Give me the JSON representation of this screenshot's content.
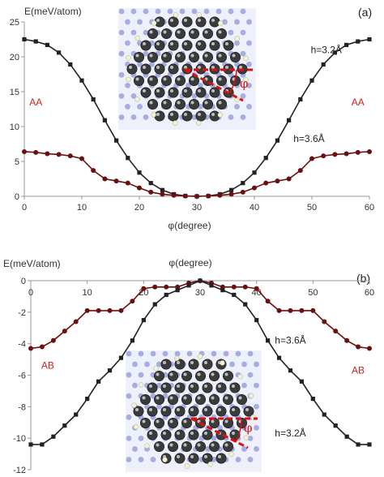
{
  "chart_data": [
    {
      "type": "line",
      "panel_label": "(a)",
      "ylabel": "E(meV/atom)",
      "xlabel": "φ(degree)",
      "xlim": [
        0,
        60
      ],
      "ylim": [
        0,
        25
      ],
      "x_ticks": [
        0,
        10,
        20,
        30,
        40,
        50,
        60
      ],
      "y_ticks": [
        0,
        5,
        10,
        15,
        20,
        25
      ],
      "grid": false,
      "series": [
        {
          "name": "h=3.2Å",
          "color": "#222222",
          "marker": "square",
          "x": [
            0,
            2,
            4,
            6,
            8,
            10,
            12,
            14,
            16,
            18,
            20,
            22,
            24,
            26,
            28,
            30,
            32,
            34,
            36,
            38,
            40,
            42,
            44,
            46,
            48,
            50,
            52,
            54,
            56,
            58,
            60
          ],
          "y": [
            22.5,
            22.2,
            21.7,
            20.6,
            18.9,
            16.6,
            13.9,
            10.9,
            8.0,
            5.5,
            3.4,
            1.9,
            0.9,
            0.3,
            0.05,
            0.0,
            0.05,
            0.3,
            0.9,
            1.9,
            3.4,
            5.5,
            8.0,
            10.9,
            13.9,
            16.6,
            18.9,
            20.6,
            21.7,
            22.2,
            22.5
          ]
        },
        {
          "name": "h=3.6Å",
          "color": "#6b0f0f",
          "marker": "circle",
          "x": [
            0,
            2,
            4,
            6,
            8,
            10,
            12,
            14,
            16,
            18,
            20,
            22,
            24,
            26,
            28,
            30,
            32,
            34,
            36,
            38,
            40,
            42,
            44,
            46,
            48,
            50,
            52,
            54,
            56,
            58,
            60
          ],
          "y": [
            6.4,
            6.3,
            6.1,
            6.0,
            5.8,
            5.4,
            3.7,
            2.5,
            2.2,
            1.9,
            1.2,
            0.6,
            0.3,
            0.15,
            0.05,
            0.0,
            0.05,
            0.15,
            0.3,
            0.6,
            1.2,
            1.9,
            2.2,
            2.5,
            3.7,
            5.4,
            5.8,
            6.0,
            6.1,
            6.3,
            6.4
          ]
        }
      ],
      "annotations": [
        {
          "text": "AA",
          "x": 2,
          "y": 13,
          "color": "#cc2222"
        },
        {
          "text": "AA",
          "x": 58,
          "y": 13,
          "color": "#cc2222"
        },
        {
          "text": "h=3.2Å",
          "x": 52.5,
          "y": 20.5,
          "color": "#222222"
        },
        {
          "text": "h=3.6Å",
          "x": 49.5,
          "y": 7.8,
          "color": "#222222"
        },
        {
          "text": "φ",
          "x": 38.2,
          "y": 15.6,
          "color": "#dd1111"
        }
      ]
    },
    {
      "type": "line",
      "panel_label": "(b)",
      "ylabel": "E(meV/atom)",
      "xlabel": "φ(degree)",
      "xlim": [
        0,
        60
      ],
      "ylim": [
        -12,
        0
      ],
      "x_ticks": [
        0,
        10,
        20,
        30,
        40,
        50,
        60
      ],
      "y_ticks": [
        0,
        -2,
        -4,
        -6,
        -8,
        -10,
        -12
      ],
      "grid": false,
      "series": [
        {
          "name": "h=3.6Å",
          "color": "#6b0f0f",
          "marker": "circle",
          "x": [
            0,
            2,
            4,
            6,
            8,
            10,
            12,
            14,
            16,
            18,
            20,
            22,
            24,
            26,
            28,
            30,
            32,
            34,
            36,
            38,
            40,
            42,
            44,
            46,
            48,
            50,
            52,
            54,
            56,
            58,
            60
          ],
          "y": [
            -4.3,
            -4.2,
            -3.8,
            -3.2,
            -2.6,
            -1.9,
            -1.9,
            -1.9,
            -1.9,
            -1.3,
            -0.5,
            -0.4,
            -0.4,
            -0.4,
            -0.15,
            0.0,
            -0.15,
            -0.4,
            -0.4,
            -0.4,
            -0.5,
            -1.3,
            -1.9,
            -1.9,
            -1.9,
            -1.9,
            -2.6,
            -3.2,
            -3.8,
            -4.2,
            -4.3
          ]
        },
        {
          "name": "h=3.2Å",
          "color": "#222222",
          "marker": "square",
          "x": [
            0,
            2,
            4,
            6,
            8,
            10,
            12,
            14,
            16,
            18,
            20,
            22,
            24,
            26,
            28,
            30,
            32,
            34,
            36,
            38,
            40,
            42,
            44,
            46,
            48,
            50,
            52,
            54,
            56,
            58,
            60
          ],
          "y": [
            -10.4,
            -10.4,
            -9.9,
            -9.2,
            -8.5,
            -7.5,
            -6.4,
            -5.7,
            -4.9,
            -3.8,
            -2.5,
            -1.5,
            -0.9,
            -0.6,
            -0.3,
            0.0,
            -0.3,
            -0.6,
            -0.9,
            -1.5,
            -2.5,
            -3.8,
            -4.9,
            -5.7,
            -6.4,
            -7.5,
            -8.5,
            -9.2,
            -9.9,
            -10.4,
            -10.4
          ]
        }
      ],
      "annotations": [
        {
          "text": "AB",
          "x": 3,
          "y": -5.6,
          "color": "#cc2222"
        },
        {
          "text": "AB",
          "x": 58,
          "y": -5.9,
          "color": "#cc2222"
        },
        {
          "text": "h=3.6Å",
          "x": 46,
          "y": -4.0,
          "color": "#222222"
        },
        {
          "text": "h=3.2Å",
          "x": 46,
          "y": -9.9,
          "color": "#222222"
        },
        {
          "text": "φ",
          "x": 38.5,
          "y": -9.6,
          "color": "#dd1111"
        }
      ]
    }
  ]
}
